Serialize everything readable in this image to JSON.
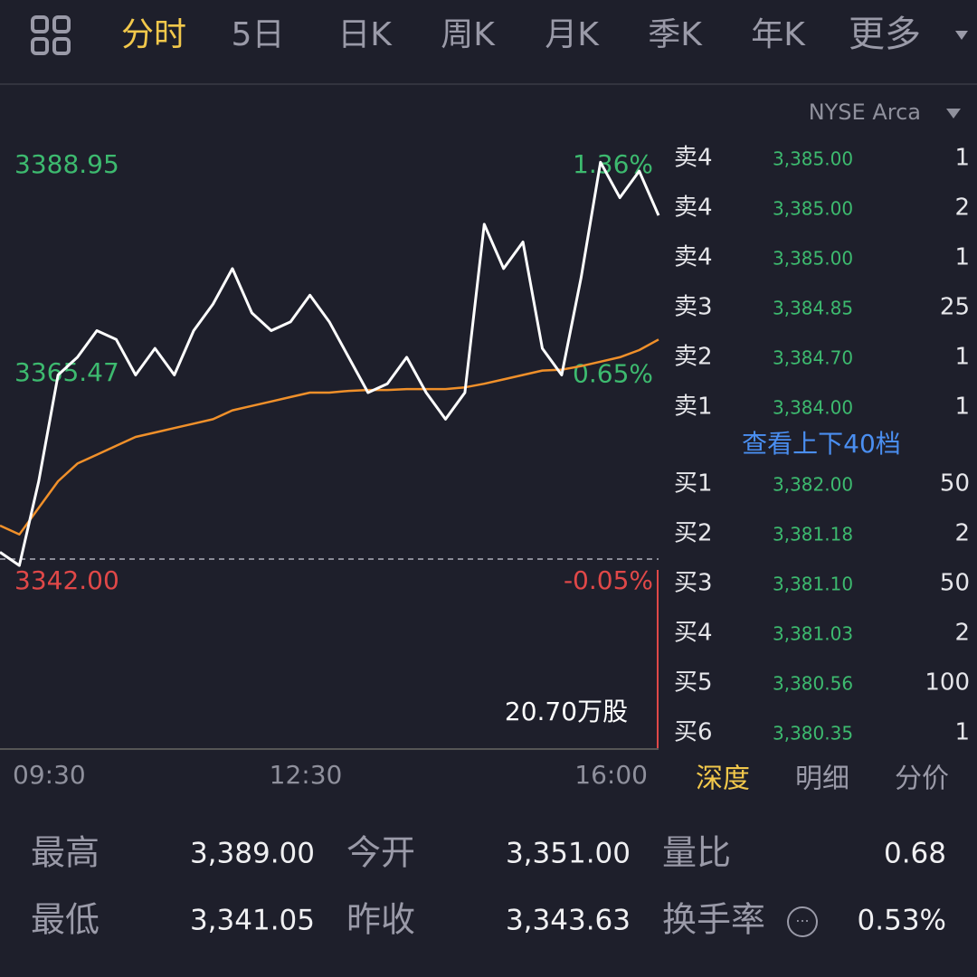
{
  "tabs": [
    "分时",
    "5日",
    "日K",
    "周K",
    "月K",
    "季K",
    "年K",
    "更多"
  ],
  "exchange": "NYSE Arca",
  "chart_data": {
    "type": "line",
    "series": [
      {
        "color": "#ffffff",
        "values": [
          3344,
          3342.5,
          3352,
          3364,
          3366,
          3369,
          3368,
          3364,
          3367,
          3364,
          3369,
          3372,
          3376,
          3371,
          3369,
          3370,
          3373,
          3370,
          3366,
          3362,
          3363,
          3366,
          3362,
          3359,
          3362,
          3381,
          3376,
          3379,
          3367,
          3364,
          3375,
          3388,
          3384,
          3387,
          3382
        ]
      },
      {
        "color": "#f0902a",
        "values": [
          3347,
          3346,
          3349,
          3352,
          3354,
          3355,
          3356,
          3357,
          3357.5,
          3358,
          3358.5,
          3359,
          3360,
          3360.5,
          3361,
          3361.5,
          3362,
          3362,
          3362.2,
          3362.3,
          3362.3,
          3362.4,
          3362.4,
          3362.4,
          3362.6,
          3363,
          3363.5,
          3364,
          3364.5,
          3364.6,
          3365,
          3365.5,
          3366,
          3366.8,
          3368
        ]
      }
    ],
    "ylim": [
      3342,
      3388.95
    ],
    "yticks": [
      3388.95,
      3365.47,
      {
        "value": 3342,
        "label": "3342.00"
      }
    ],
    "y2lim": [
      -0.05,
      1.36
    ],
    "y2ticks": [
      {
        "value": 1.36,
        "label": "1.36%"
      },
      {
        "value": 0.65,
        "label": "0.65%"
      },
      {
        "value": -0.05,
        "label": "-0.05%"
      }
    ],
    "x_labels": [
      "09:30",
      "12:30",
      "16:00"
    ],
    "volume_label": "20.70万股"
  },
  "order_book": {
    "asks": [
      [
        "卖4",
        "3,385.00",
        "1"
      ],
      [
        "卖4",
        "3,385.00",
        "2"
      ],
      [
        "卖4",
        "3,385.00",
        "1"
      ],
      [
        "卖3",
        "3,384.85",
        "25"
      ],
      [
        "卖2",
        "3,384.70",
        "1"
      ],
      [
        "卖1",
        "3,384.00",
        "1"
      ]
    ],
    "more": "查看上下40档",
    "bids": [
      [
        "买1",
        "3,382.00",
        "50"
      ],
      [
        "买2",
        "3,381.18",
        "2"
      ],
      [
        "买3",
        "3,381.10",
        "50"
      ],
      [
        "买4",
        "3,381.03",
        "2"
      ],
      [
        "买5",
        "3,380.56",
        "100"
      ],
      [
        "买6",
        "3,380.35",
        "1"
      ]
    ],
    "tabs": [
      "深度",
      "明细",
      "分价"
    ]
  },
  "stats": [
    [
      "最高",
      "3,389.00",
      "今开",
      "3,351.00",
      "量比",
      "0.68"
    ],
    [
      "最低",
      "3,341.05",
      "昨收",
      "3,343.63",
      "换手率",
      "0.53%"
    ]
  ]
}
